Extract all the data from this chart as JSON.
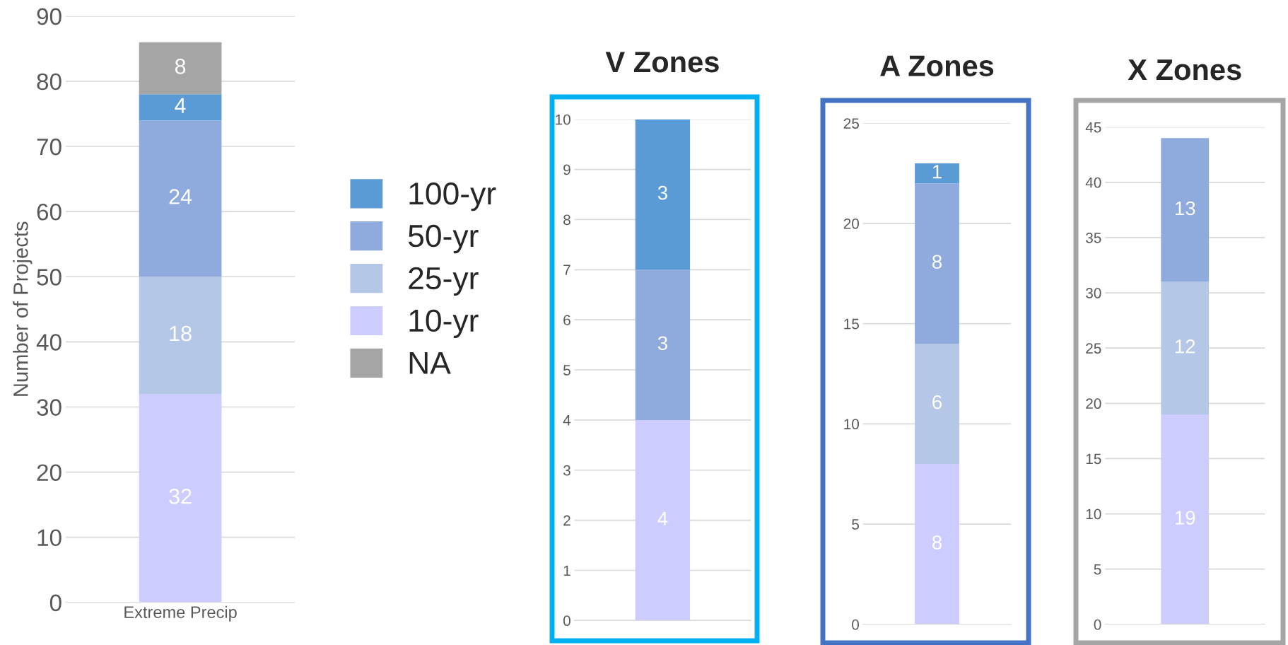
{
  "chart_data": [
    {
      "type": "bar",
      "stacked": true,
      "categories": [
        "Extreme Precip"
      ],
      "ylabel": "Number of Projects",
      "ylim": [
        0,
        90
      ],
      "yticks": [
        0,
        10,
        20,
        30,
        40,
        50,
        60,
        70,
        80,
        90
      ],
      "grid": "y",
      "legend": "right",
      "data_labels": true,
      "series": [
        {
          "name": "10-yr",
          "color": "#ccccff",
          "values": [
            32
          ]
        },
        {
          "name": "25-yr",
          "color": "#b4c7e7",
          "values": [
            18
          ]
        },
        {
          "name": "50-yr",
          "color": "#8faadc",
          "values": [
            24
          ]
        },
        {
          "name": "100-yr",
          "color": "#5b9bd5",
          "values": [
            4
          ]
        },
        {
          "name": "NA",
          "color": "#a5a5a5",
          "values": [
            8
          ]
        }
      ]
    },
    {
      "type": "bar",
      "stacked": true,
      "title": "V Zones",
      "categories": [
        null
      ],
      "ylim": [
        0,
        10
      ],
      "yticks": [
        0,
        1,
        2,
        3,
        4,
        5,
        6,
        7,
        8,
        9,
        10
      ],
      "grid": "y",
      "data_labels": true,
      "series": [
        {
          "color": "#ccccff",
          "values": [
            4
          ]
        },
        {
          "color": "#8faadc",
          "values": [
            3
          ]
        },
        {
          "color": "#5b9bd5",
          "values": [
            3
          ]
        }
      ]
    },
    {
      "type": "bar",
      "stacked": true,
      "title": "A Zones",
      "categories": [
        null
      ],
      "ylim": [
        0,
        25
      ],
      "yticks": [
        0,
        5,
        10,
        15,
        20,
        25
      ],
      "grid": "y",
      "data_labels": true,
      "series": [
        {
          "color": "#ccccff",
          "values": [
            8
          ]
        },
        {
          "color": "#b4c7e7",
          "values": [
            6
          ]
        },
        {
          "color": "#8faadc",
          "values": [
            8
          ]
        },
        {
          "color": "#5b9bd5",
          "values": [
            1
          ]
        }
      ]
    },
    {
      "type": "bar",
      "stacked": true,
      "title": "X Zones",
      "categories": [
        null
      ],
      "ylim": [
        0,
        45
      ],
      "yticks": [
        0,
        5,
        10,
        15,
        20,
        25,
        30,
        35,
        40,
        45
      ],
      "grid": "y",
      "data_labels": true,
      "series": [
        {
          "color": "#ccccff",
          "values": [
            19
          ]
        },
        {
          "color": "#b4c7e7",
          "values": [
            12
          ]
        },
        {
          "color": "#8faadc",
          "values": [
            13
          ]
        }
      ]
    }
  ]
}
